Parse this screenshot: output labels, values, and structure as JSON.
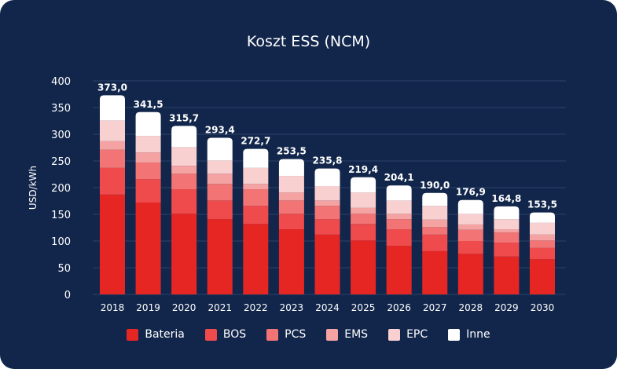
{
  "chart_data": {
    "type": "bar",
    "stacked": true,
    "title": "Koszt ESS (NCM)",
    "xlabel": "",
    "ylabel": "USD/kWh",
    "ylim": [
      0,
      400
    ],
    "yticks": [
      0,
      50,
      100,
      150,
      200,
      250,
      300,
      350,
      400
    ],
    "grid": true,
    "legend_position": "bottom",
    "categories": [
      "2018",
      "2019",
      "2020",
      "2021",
      "2022",
      "2023",
      "2024",
      "2025",
      "2026",
      "2027",
      "2028",
      "2029",
      "2030"
    ],
    "totals": [
      "373,0",
      "341,5",
      "315,7",
      "293,4",
      "272,7",
      "253,5",
      "235,8",
      "219,4",
      "204,1",
      "190,0",
      "176,9",
      "164,8",
      "153,5"
    ],
    "series": [
      {
        "name": "Bateria",
        "color": "#e62623",
        "values": [
          187,
          172,
          151,
          141,
          132,
          122,
          112,
          101,
          91,
          81,
          76,
          71,
          66
        ]
      },
      {
        "name": "BOS",
        "color": "#ef4b4d",
        "values": [
          50,
          44,
          46,
          35,
          34,
          29,
          29,
          31,
          31,
          31,
          24,
          26,
          21
        ]
      },
      {
        "name": "PCS",
        "color": "#f27474",
        "values": [
          34,
          31,
          29,
          31,
          31,
          25,
          25,
          19,
          19,
          14,
          21,
          19,
          14
        ]
      },
      {
        "name": "EMS",
        "color": "#f5a2a2",
        "values": [
          16,
          19,
          15,
          19,
          10,
          15,
          10,
          11,
          10,
          14,
          10,
          6,
          11
        ]
      },
      {
        "name": "EPC",
        "color": "#f9d0d0",
        "values": [
          39,
          31,
          35,
          25,
          30,
          31,
          27,
          29,
          25,
          26,
          20,
          19,
          22
        ]
      },
      {
        "name": "Inne",
        "color": "#ffffff",
        "values": [
          47,
          44.5,
          39.7,
          42.4,
          35.7,
          31.5,
          32.8,
          28.4,
          28.1,
          24,
          25.9,
          23.8,
          19.5
        ]
      }
    ]
  }
}
